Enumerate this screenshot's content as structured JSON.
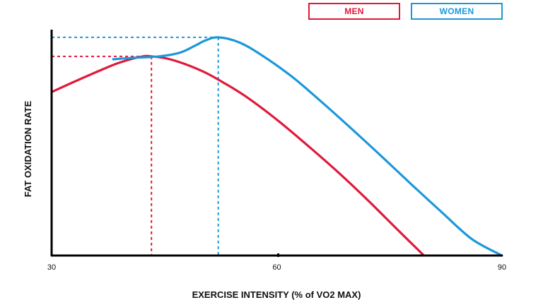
{
  "chart_data": {
    "type": "line",
    "title": "",
    "xlabel": "EXERCISE INTENSITY (% of VO2 MAX)",
    "ylabel": "FAT OXIDATION RATE",
    "xlim": [
      30,
      90
    ],
    "ylim": [
      0,
      1
    ],
    "x_ticks": [
      "30",
      "60",
      "90"
    ],
    "legend": [
      "MEN",
      "WOMEN"
    ],
    "series": [
      {
        "name": "MEN",
        "color": "#e0193a",
        "x": [
          30,
          33,
          36,
          39,
          42,
          43.3,
          46,
          50,
          53,
          56,
          60,
          64,
          68,
          72,
          76,
          79.6
        ],
        "y": [
          0.747,
          0.794,
          0.839,
          0.881,
          0.909,
          0.91,
          0.895,
          0.844,
          0.788,
          0.724,
          0.621,
          0.506,
          0.386,
          0.257,
          0.121,
          0.0
        ]
      },
      {
        "name": "WOMEN",
        "color": "#1b98d9",
        "x": [
          38.2,
          41,
          44,
          47,
          49,
          50.5,
          52.2,
          55,
          58,
          62,
          66,
          70,
          74,
          78,
          82,
          86,
          90
        ],
        "y": [
          0.897,
          0.904,
          0.909,
          0.926,
          0.957,
          0.983,
          0.997,
          0.974,
          0.915,
          0.818,
          0.701,
          0.578,
          0.452,
          0.323,
          0.197,
          0.075,
          0.0
        ]
      }
    ],
    "peaks": [
      {
        "series": "MEN",
        "x": 43.3,
        "y": 0.91
      },
      {
        "series": "WOMEN",
        "x": 52.2,
        "y": 0.997
      }
    ]
  }
}
